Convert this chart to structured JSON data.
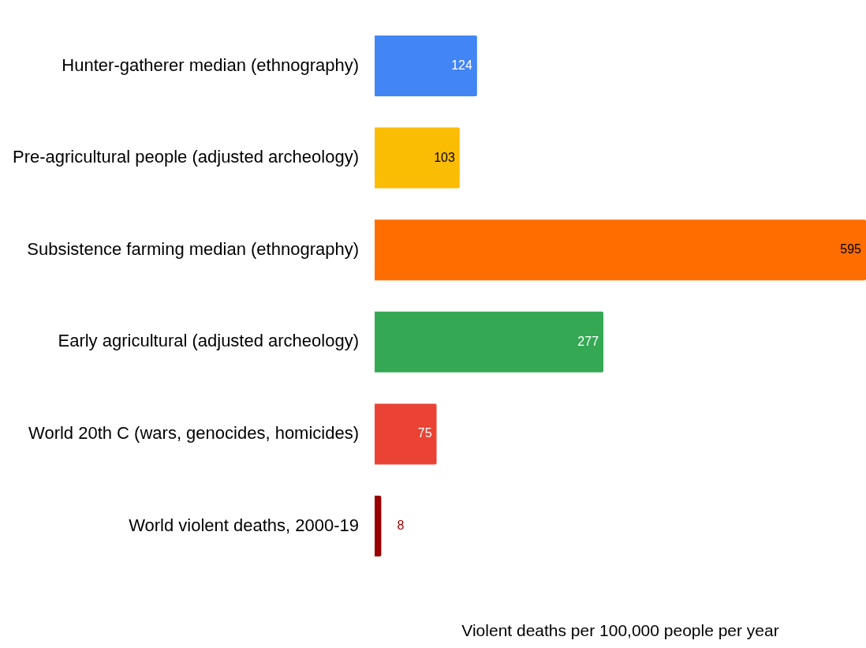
{
  "chart_data": {
    "type": "bar",
    "orientation": "horizontal",
    "xlabel": "Violent deaths per 100,000 people per year",
    "categories": [
      "Hunter-gatherer median (ethnography)",
      "Pre-agricultural people (adjusted archeology)",
      "Subsistence farming median (ethnography)",
      "Early agricultural (adjusted archeology)",
      "World 20th C (wars, genocides, homicides)",
      "World violent deaths, 2000-19"
    ],
    "values": [
      124,
      103,
      595,
      277,
      75,
      8
    ],
    "colors": [
      "#4285f4",
      "#fbbc04",
      "#ff6d01",
      "#34a853",
      "#ea4335",
      "#990000"
    ],
    "xlim": [
      0,
      595
    ],
    "data_labels": true,
    "grid": false,
    "legend": false,
    "tick_labels": "y"
  }
}
